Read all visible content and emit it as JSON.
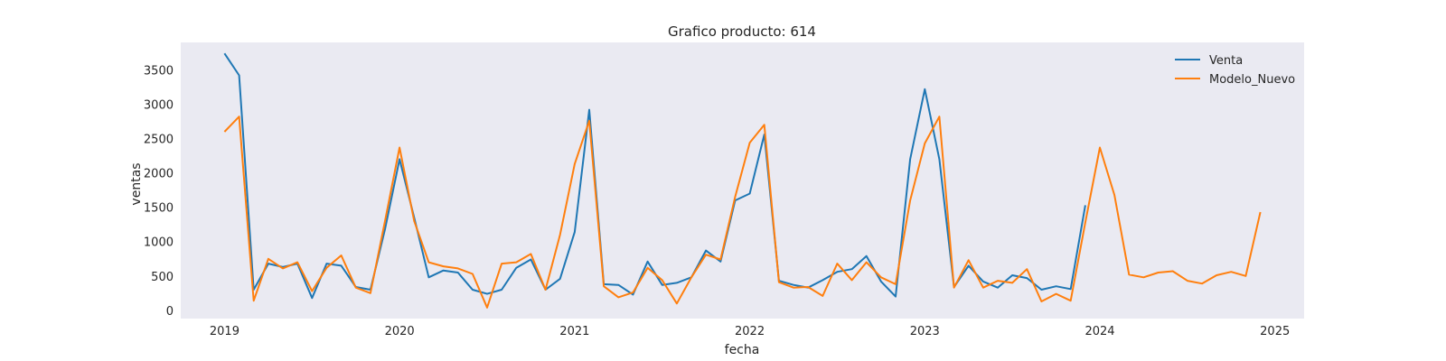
{
  "chart_data": {
    "type": "line",
    "title": "Grafico producto: 614",
    "xlabel": "fecha",
    "ylabel": "ventas",
    "x_ticks": [
      "2019",
      "2020",
      "2021",
      "2022",
      "2023",
      "2024",
      "2025"
    ],
    "y_ticks": [
      "0",
      "500",
      "1000",
      "1500",
      "2000",
      "2500",
      "3000",
      "3500"
    ],
    "xlim": [
      "2018-10",
      "2025-03"
    ],
    "ylim": [
      -120,
      3900
    ],
    "grid": false,
    "legend_position": "top-right",
    "background": "#eaeaf2",
    "series": [
      {
        "name": "Venta",
        "color": "#1f77b4",
        "start": "2019-01",
        "values": [
          3740,
          3420,
          300,
          680,
          630,
          680,
          180,
          680,
          650,
          340,
          300,
          1180,
          2200,
          1350,
          480,
          580,
          550,
          300,
          240,
          300,
          620,
          740,
          300,
          460,
          1140,
          2920,
          380,
          370,
          230,
          710,
          370,
          400,
          480,
          870,
          710,
          1600,
          1700,
          2560,
          430,
          370,
          330,
          440,
          560,
          600,
          790,
          420,
          200,
          2200,
          3220,
          2200,
          340,
          650,
          420,
          330,
          510,
          470,
          300,
          350,
          310,
          1530
        ]
      },
      {
        "name": "Modelo_Nuevo",
        "color": "#ff7f0e",
        "start": "2019-01",
        "values": [
          2600,
          2820,
          140,
          750,
          610,
          700,
          280,
          620,
          800,
          330,
          250,
          1300,
          2370,
          1300,
          700,
          640,
          610,
          530,
          40,
          680,
          700,
          820,
          300,
          1100,
          2130,
          2760,
          350,
          190,
          260,
          620,
          440,
          100,
          480,
          810,
          740,
          1650,
          2440,
          2700,
          410,
          330,
          340,
          210,
          680,
          440,
          700,
          480,
          380,
          1600,
          2430,
          2820,
          330,
          730,
          330,
          430,
          400,
          600,
          130,
          240,
          140,
          1280,
          2370,
          1680,
          520,
          480,
          550,
          570,
          430,
          390,
          510,
          560,
          500,
          1430
        ]
      }
    ]
  }
}
